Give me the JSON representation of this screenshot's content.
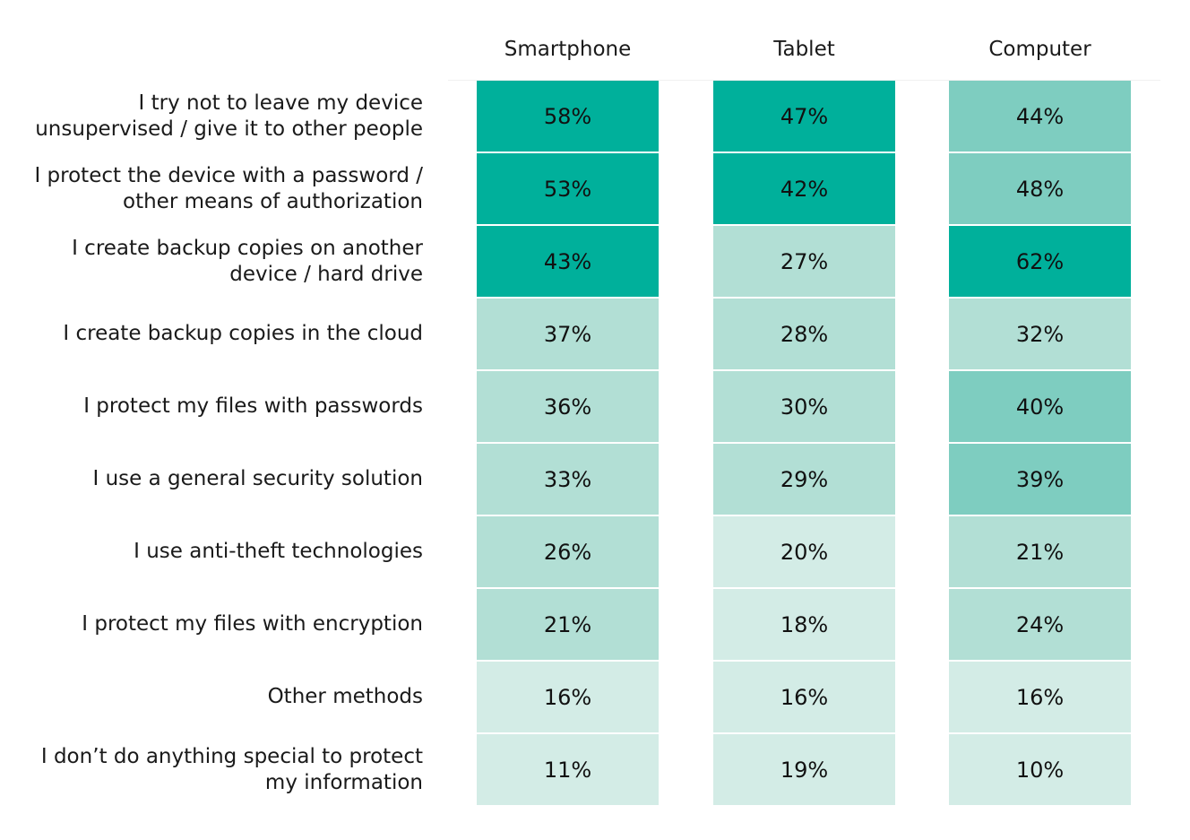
{
  "chart_data": {
    "type": "heatmap",
    "title": "",
    "columns": [
      "Smartphone",
      "Tablet",
      "Computer"
    ],
    "rows": [
      "I try not to leave my device unsupervised / give it to other people",
      "I protect the device with a password / other means of authorization",
      "I create backup copies on another device / hard drive",
      "I create backup copies in the cloud",
      "I protect my files with passwords",
      "I use a general security solution",
      "I use anti-theft technologies",
      "I protect my files with encryption",
      "Other methods",
      "I don’t do anything special to protect my information"
    ],
    "row_label_lines": [
      [
        "I try not to leave my device",
        "unsupervised / give it to other people"
      ],
      [
        "I protect the device with a password /",
        "other means of authorization"
      ],
      [
        "I create backup copies on another",
        "device / hard drive"
      ],
      [
        "I create backup copies in the cloud"
      ],
      [
        "I protect my files with passwords"
      ],
      [
        "I use a general security solution"
      ],
      [
        "I use anti-theft technologies"
      ],
      [
        "I protect my files with encryption"
      ],
      [
        "Other methods"
      ],
      [
        "I don’t do anything special to protect",
        "my information"
      ]
    ],
    "values": [
      [
        58,
        47,
        44
      ],
      [
        53,
        42,
        48
      ],
      [
        43,
        27,
        62
      ],
      [
        37,
        28,
        32
      ],
      [
        36,
        30,
        40
      ],
      [
        33,
        29,
        39
      ],
      [
        26,
        20,
        21
      ],
      [
        21,
        18,
        24
      ],
      [
        16,
        16,
        16
      ],
      [
        11,
        19,
        10
      ]
    ],
    "value_suffix": "%",
    "color_scale": [
      {
        "min": 41,
        "color": "#00b09b"
      },
      {
        "min": 38,
        "color": "#7ecdc0"
      },
      {
        "min": 21,
        "color": "#b2dfd5"
      },
      {
        "min": 0,
        "color": "#d3ece6"
      }
    ],
    "cell_overrides": {
      "0-2": "#7ecdc0",
      "1-2": "#7ecdc0",
      "7-0": "#b2dfd5",
      "7-2": "#b2dfd5"
    }
  }
}
